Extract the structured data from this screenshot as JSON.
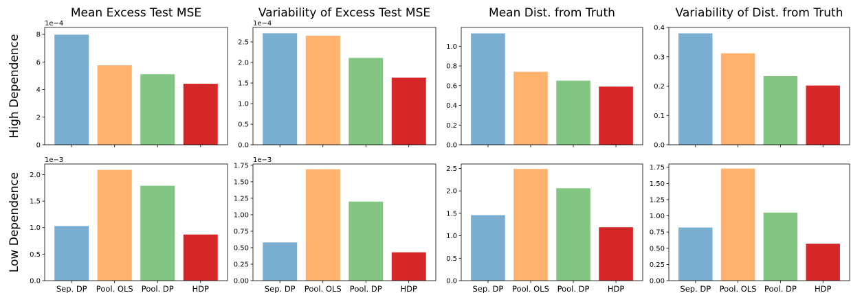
{
  "column_titles": [
    "Mean Excess Test MSE",
    "Variability of Excess Test MSE",
    "Mean Dist. from Truth",
    "Variability of Dist. from Truth"
  ],
  "row_labels": [
    "High Dependence",
    "Low Dependence"
  ],
  "categories": [
    "Sep. DP",
    "Pool. OLS",
    "Pool. DP",
    "HDP"
  ],
  "colors": [
    "#7aaed1",
    "#ffb26e",
    "#83c683",
    "#d62728"
  ],
  "chart_data": [
    {
      "type": "bar",
      "title": "Mean Excess Test MSE",
      "row": "High Dependence",
      "categories": [
        "Sep. DP",
        "Pool. OLS",
        "Pool. DP",
        "HDP"
      ],
      "values": [
        0.000798,
        0.000576,
        0.000511,
        0.000442
      ],
      "ylim": [
        0,
        0.00085
      ],
      "yticks": [
        0,
        0.0002,
        0.0004,
        0.0006,
        0.0008
      ],
      "ytick_labels": [
        "0",
        "2",
        "4",
        "6",
        "8"
      ],
      "offset_label": "1e−4"
    },
    {
      "type": "bar",
      "title": "Variability of Excess Test MSE",
      "row": "High Dependence",
      "categories": [
        "Sep. DP",
        "Pool. OLS",
        "Pool. DP",
        "HDP"
      ],
      "values": [
        0.000271,
        0.000265,
        0.000211,
        0.000163
      ],
      "ylim": [
        0,
        0.000285
      ],
      "yticks": [
        0,
        5e-05,
        0.0001,
        0.00015,
        0.0002,
        0.00025
      ],
      "ytick_labels": [
        "0.0",
        "0.5",
        "1.0",
        "1.5",
        "2.0",
        "2.5"
      ],
      "offset_label": "1e−4"
    },
    {
      "type": "bar",
      "title": "Mean Dist. from Truth",
      "row": "High Dependence",
      "categories": [
        "Sep. DP",
        "Pool. OLS",
        "Pool. DP",
        "HDP"
      ],
      "values": [
        1.13,
        0.74,
        0.65,
        0.59
      ],
      "ylim": [
        0,
        1.19
      ],
      "yticks": [
        0,
        0.2,
        0.4,
        0.6,
        0.8,
        1.0
      ],
      "ytick_labels": [
        "0.0",
        "0.2",
        "0.4",
        "0.6",
        "0.8",
        "1.0"
      ],
      "offset_label": ""
    },
    {
      "type": "bar",
      "title": "Variability of Dist. from Truth",
      "row": "High Dependence",
      "categories": [
        "Sep. DP",
        "Pool. OLS",
        "Pool. DP",
        "HDP"
      ],
      "values": [
        0.38,
        0.312,
        0.234,
        0.202
      ],
      "ylim": [
        0,
        0.4
      ],
      "yticks": [
        0,
        0.1,
        0.2,
        0.3,
        0.4
      ],
      "ytick_labels": [
        "0.0",
        "0.1",
        "0.2",
        "0.3",
        "0.4"
      ],
      "offset_label": ""
    },
    {
      "type": "bar",
      "title": "Mean Excess Test MSE",
      "row": "Low Dependence",
      "categories": [
        "Sep. DP",
        "Pool. OLS",
        "Pool. DP",
        "HDP"
      ],
      "values": [
        0.00103,
        0.00209,
        0.00179,
        0.00087
      ],
      "ylim": [
        0,
        0.0022
      ],
      "yticks": [
        0,
        0.0005,
        0.001,
        0.0015,
        0.002
      ],
      "ytick_labels": [
        "0.0",
        "0.5",
        "1.0",
        "1.5",
        "2.0"
      ],
      "offset_label": "1e−3"
    },
    {
      "type": "bar",
      "title": "Variability of Excess Test MSE",
      "row": "Low Dependence",
      "categories": [
        "Sep. DP",
        "Pool. OLS",
        "Pool. DP",
        "HDP"
      ],
      "values": [
        0.00058,
        0.00169,
        0.0012,
        0.00043
      ],
      "ylim": [
        0,
        0.00177
      ],
      "yticks": [
        0,
        0.00025,
        0.0005,
        0.00075,
        0.001,
        0.00125,
        0.0015,
        0.00175
      ],
      "ytick_labels": [
        "0.00",
        "0.25",
        "0.50",
        "0.75",
        "1.00",
        "1.25",
        "1.50",
        "1.75"
      ],
      "offset_label": "1e−3"
    },
    {
      "type": "bar",
      "title": "Mean Dist. from Truth",
      "row": "Low Dependence",
      "categories": [
        "Sep. DP",
        "Pool. OLS",
        "Pool. DP",
        "HDP"
      ],
      "values": [
        1.46,
        2.49,
        2.06,
        1.19
      ],
      "ylim": [
        0,
        2.6
      ],
      "yticks": [
        0,
        0.5,
        1.0,
        1.5,
        2.0,
        2.5
      ],
      "ytick_labels": [
        "0.0",
        "0.5",
        "1.0",
        "1.5",
        "2.0",
        "2.5"
      ],
      "offset_label": ""
    },
    {
      "type": "bar",
      "title": "Variability of Dist. from Truth",
      "row": "Low Dependence",
      "categories": [
        "Sep. DP",
        "Pool. OLS",
        "Pool. DP",
        "HDP"
      ],
      "values": [
        0.82,
        1.73,
        1.05,
        0.57
      ],
      "ylim": [
        0,
        1.8
      ],
      "yticks": [
        0,
        0.25,
        0.5,
        0.75,
        1.0,
        1.25,
        1.5,
        1.75
      ],
      "ytick_labels": [
        "0.00",
        "0.25",
        "0.50",
        "0.75",
        "1.00",
        "1.25",
        "1.50",
        "1.75"
      ],
      "offset_label": ""
    }
  ]
}
